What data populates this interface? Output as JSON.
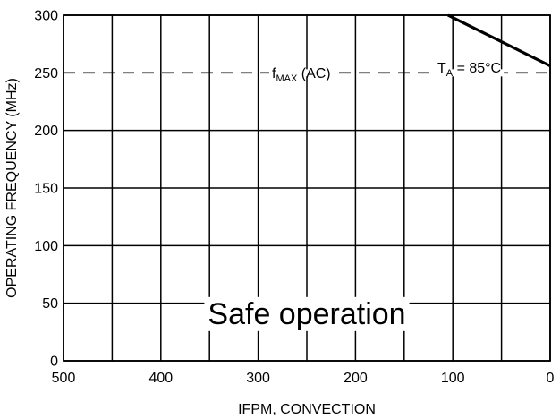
{
  "chart_data": {
    "type": "line",
    "xlabel": "IFPM, CONVECTION",
    "ylabel": "OPERATING FREQUENCY (MHz)",
    "xlim": [
      500,
      0
    ],
    "ylim": [
      0,
      300
    ],
    "x_ticks": [
      500,
      400,
      300,
      200,
      100,
      0
    ],
    "x_tick_labels": [
      "500",
      "400",
      "300",
      "200",
      "100",
      "0"
    ],
    "x_gridlines": [
      500,
      450,
      400,
      350,
      300,
      250,
      200,
      150,
      100,
      50,
      0
    ],
    "y_ticks": [
      0,
      50,
      100,
      150,
      200,
      250,
      300
    ],
    "y_tick_labels": [
      "0",
      "50",
      "100",
      "150",
      "200",
      "250",
      "300"
    ],
    "grid": true,
    "series": [
      {
        "name": "TA = 85°C",
        "x": [
          105,
          0
        ],
        "y": [
          300,
          256
        ],
        "style": "solid"
      }
    ],
    "reference_lines": [
      {
        "y": 250,
        "style": "dashed"
      }
    ],
    "annotations": {
      "fmax_main": "f",
      "fmax_sub": "MAX",
      "fmax_suffix": " (AC)",
      "ta_main": "T",
      "ta_sub": "A",
      "ta_suffix": " = 85°C",
      "region_label": "Safe operation"
    }
  }
}
